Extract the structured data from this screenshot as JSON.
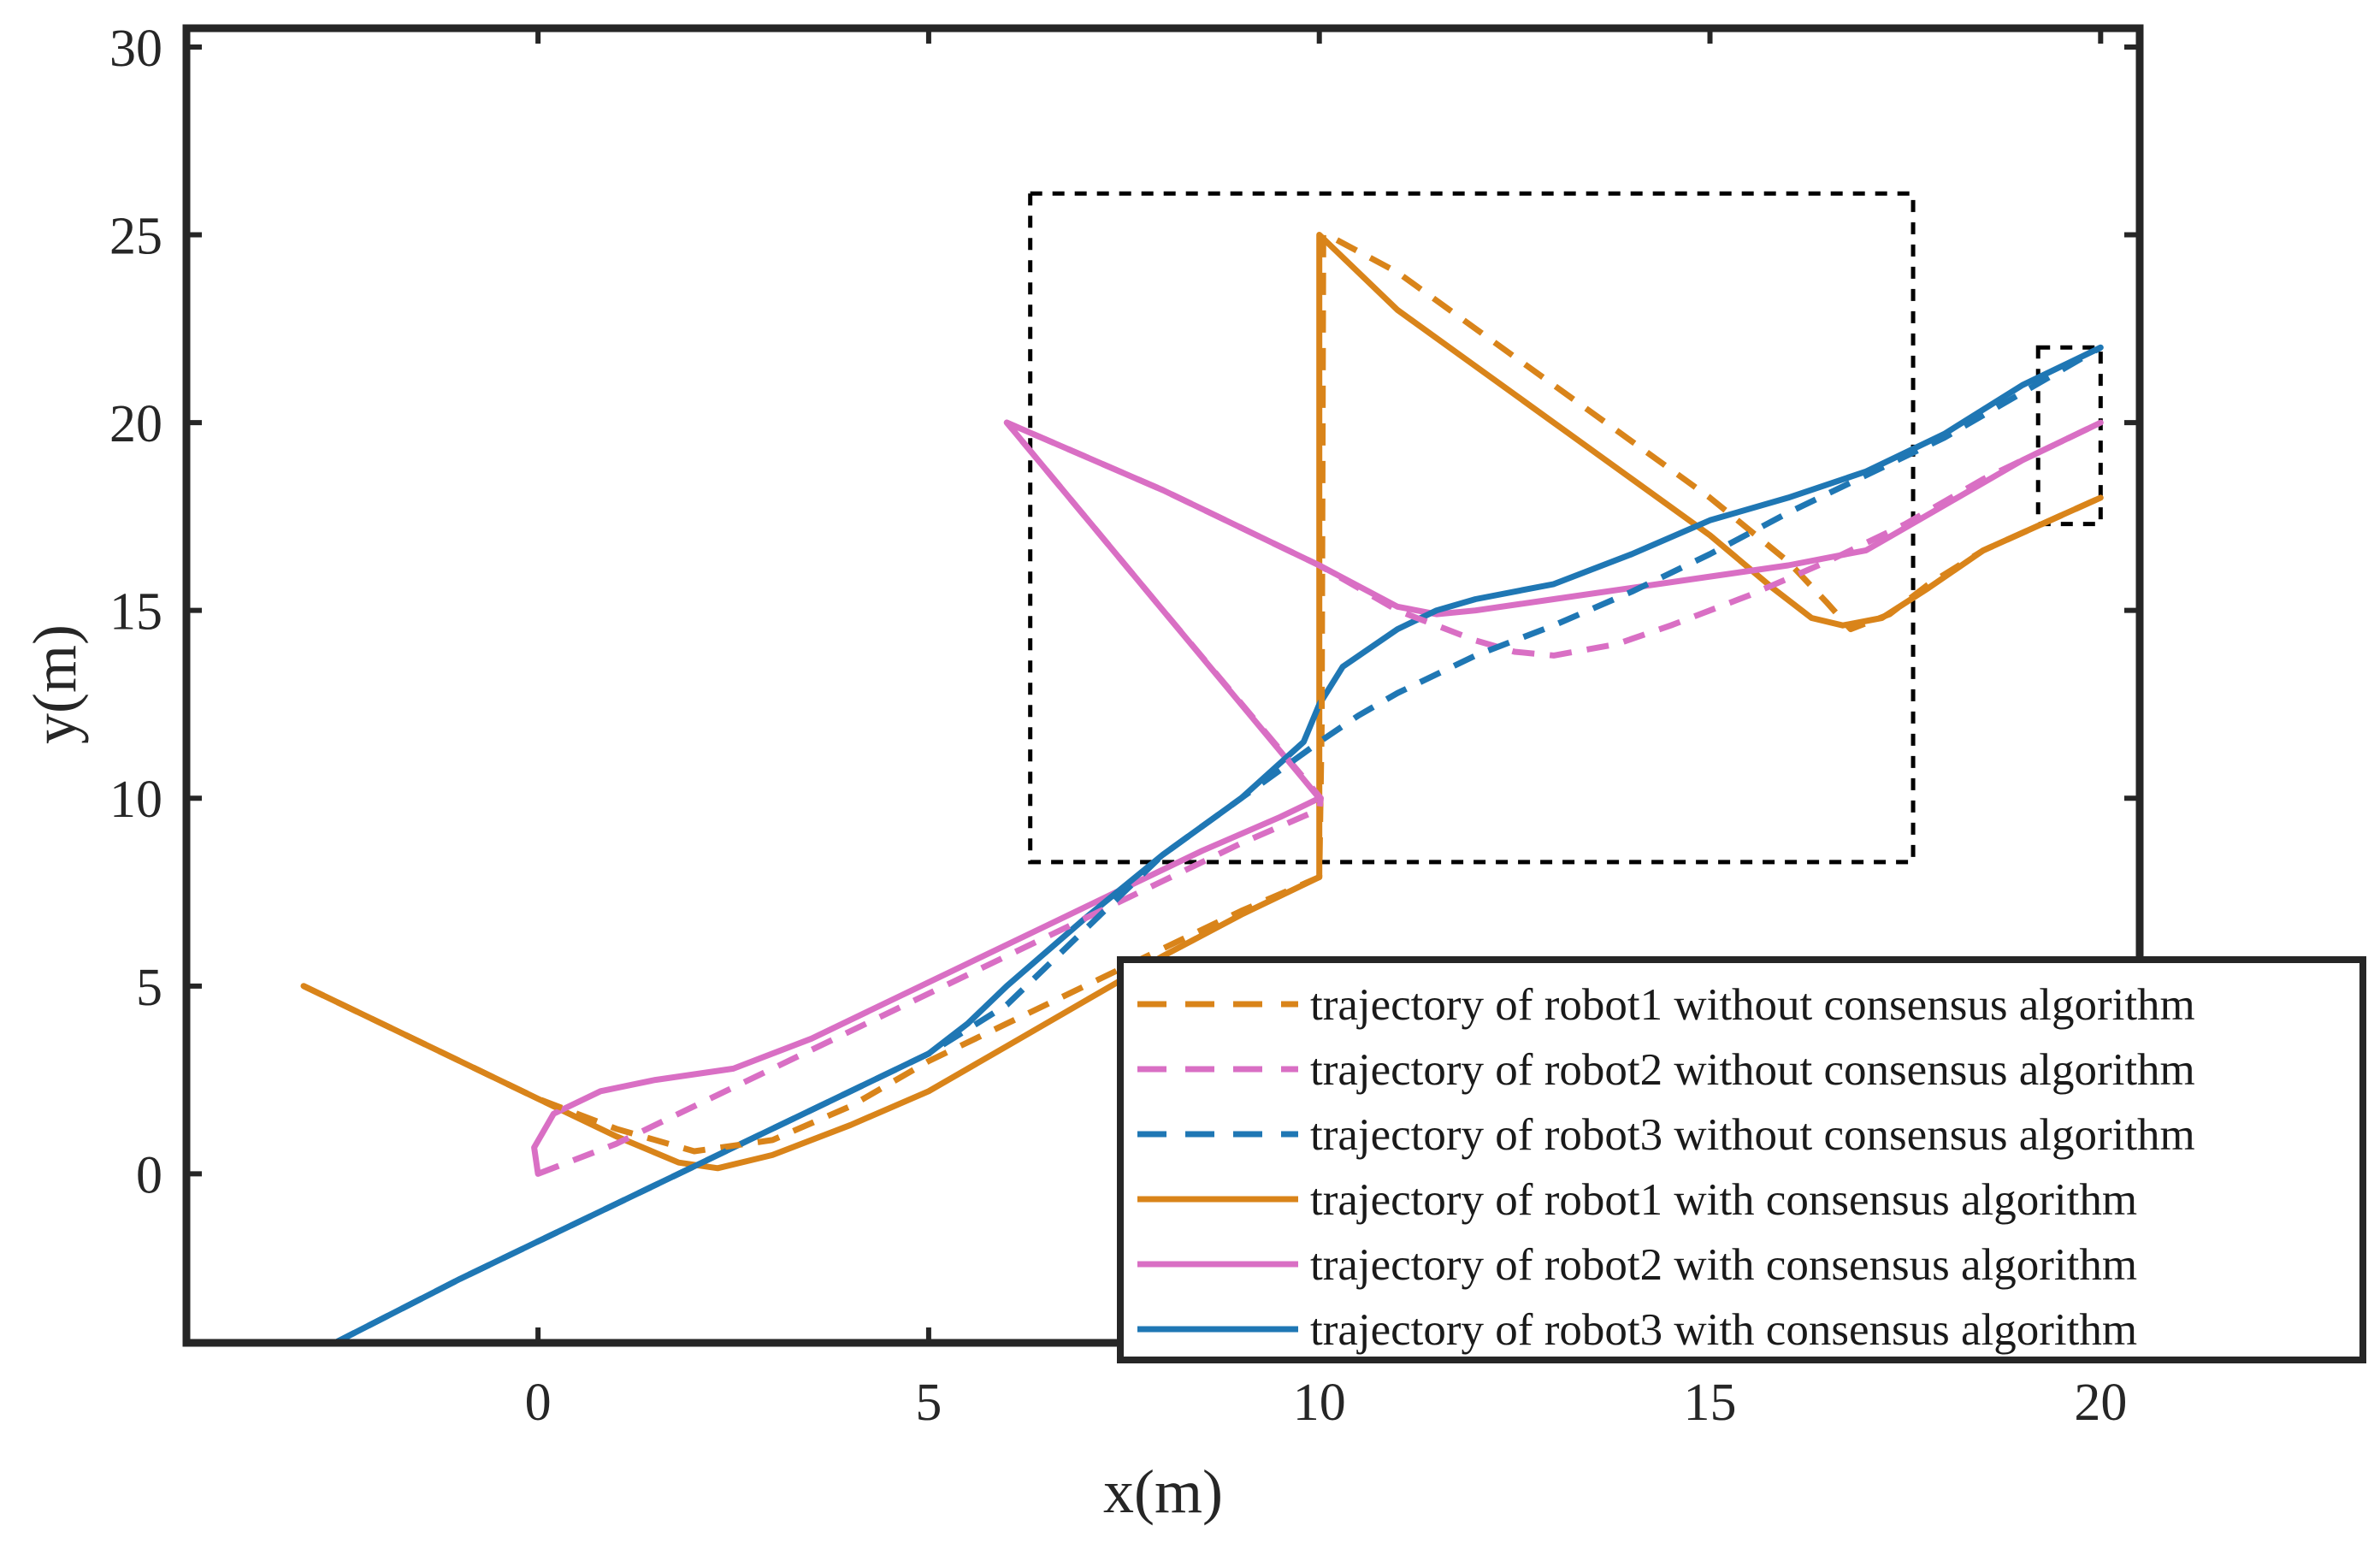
{
  "chart_data": {
    "type": "line",
    "title": "",
    "xlabel": "x(m)",
    "ylabel": "y(m)",
    "xlim": [
      -4.5,
      20.5
    ],
    "ylim": [
      -4.5,
      30.5
    ],
    "xticks": [
      0,
      5,
      10,
      15,
      20
    ],
    "yticks": [
      0,
      5,
      10,
      15,
      20,
      25,
      30
    ],
    "xtick_labels": [
      "0",
      "5",
      "10",
      "15",
      "20"
    ],
    "ytick_labels": [
      "0",
      "5",
      "10",
      "15",
      "20",
      "25",
      "30"
    ],
    "grid": false,
    "legend_position": "bottom-right",
    "series": [
      {
        "name": "trajectory of robot1 without consensus algorithm",
        "color": "#D9841A",
        "style": "dashed",
        "x": [
          -3,
          -1,
          0,
          1,
          2,
          3,
          4,
          5,
          6,
          7,
          8,
          9,
          10,
          10.03,
          10.05,
          10.1,
          11,
          12,
          13,
          14,
          15,
          16,
          16.5,
          16.8,
          17.3,
          17.8,
          18.5,
          20
        ],
        "y": [
          5,
          3,
          2,
          1.2,
          0.6,
          0.9,
          1.8,
          3,
          4,
          5,
          6,
          7,
          7.9,
          12,
          25,
          25,
          24,
          22.5,
          21,
          19.5,
          18,
          16.3,
          15.2,
          14.5,
          14.9,
          15.7,
          16.6,
          18
        ]
      },
      {
        "name": "trajectory of robot2 without consensus algorithm",
        "color": "#D96FC4",
        "style": "dashed",
        "x": [
          0,
          1,
          2,
          3,
          4,
          5,
          6,
          7,
          8,
          9,
          10,
          10.02,
          10.02,
          8,
          6,
          8,
          10,
          11,
          12,
          12.5,
          13,
          13.8,
          14.5,
          15.5,
          16.5,
          17.5,
          18.5,
          20
        ],
        "y": [
          0,
          0.8,
          1.8,
          2.8,
          3.8,
          4.8,
          5.8,
          6.8,
          7.8,
          8.8,
          9.7,
          10,
          10,
          15,
          20,
          18.2,
          16.2,
          15,
          14.2,
          13.9,
          13.8,
          14.1,
          14.6,
          15.4,
          16.3,
          17.3,
          18.5,
          20
        ]
      },
      {
        "name": "trajectory of robot3 without consensus algorithm",
        "color": "#1F77B4",
        "style": "dashed",
        "x": [
          -2.6,
          -1,
          0,
          1,
          2,
          3,
          4,
          5,
          6,
          7,
          8,
          9,
          10,
          10.5,
          11,
          12,
          13,
          14,
          15,
          16,
          17,
          18,
          19,
          20
        ],
        "y": [
          -4.5,
          -2.8,
          -1.8,
          -0.8,
          0.2,
          1.2,
          2.2,
          3.2,
          4.5,
          6.5,
          8.5,
          10,
          11.5,
          12.2,
          12.8,
          13.8,
          14.6,
          15.5,
          16.5,
          17.6,
          18.6,
          19.6,
          20.8,
          22
        ]
      },
      {
        "name": "trajectory of robot1 with consensus algorithm",
        "color": "#D9841A",
        "style": "solid",
        "x": [
          -3,
          -1,
          0,
          1,
          1.8,
          2.3,
          3,
          4,
          5,
          6,
          7,
          8,
          9,
          10,
          10,
          10,
          11,
          12,
          13,
          14,
          15,
          15.8,
          16.3,
          16.7,
          17.2,
          17.8,
          18.5,
          20
        ],
        "y": [
          5,
          3,
          2,
          1,
          0.3,
          0.15,
          0.5,
          1.3,
          2.2,
          3.4,
          4.6,
          5.8,
          6.9,
          7.9,
          15,
          25,
          23,
          21.5,
          20,
          18.5,
          17,
          15.6,
          14.8,
          14.6,
          14.8,
          15.6,
          16.6,
          18
        ]
      },
      {
        "name": "trajectory of robot2 with consensus algorithm",
        "color": "#D96FC4",
        "style": "solid",
        "x": [
          0,
          -0.05,
          0.2,
          0.8,
          1.5,
          2.5,
          3.5,
          4.5,
          5.5,
          6.5,
          7.5,
          8.5,
          9.5,
          10,
          10,
          8,
          6,
          8,
          10,
          11,
          11.5,
          12,
          13,
          14,
          15,
          16,
          17,
          18,
          19,
          20
        ],
        "y": [
          0,
          0.7,
          1.6,
          2.2,
          2.5,
          2.8,
          3.6,
          4.6,
          5.6,
          6.6,
          7.6,
          8.6,
          9.5,
          10,
          10,
          15,
          20,
          18.2,
          16.2,
          15.1,
          14.9,
          15,
          15.3,
          15.6,
          15.9,
          16.2,
          16.6,
          17.8,
          19,
          20
        ]
      },
      {
        "name": "trajectory of robot3 with consensus algorithm",
        "color": "#1F77B4",
        "style": "solid",
        "x": [
          -2.6,
          -1,
          0,
          1,
          2,
          3,
          4,
          5,
          5.5,
          6,
          7,
          8,
          9,
          9.8,
          10,
          10.3,
          11,
          11.5,
          12,
          13,
          14,
          15,
          16,
          17,
          18,
          19,
          20
        ],
        "y": [
          -4.5,
          -2.8,
          -1.8,
          -0.8,
          0.2,
          1.2,
          2.2,
          3.2,
          4,
          5,
          6.8,
          8.5,
          10,
          11.5,
          12.5,
          13.5,
          14.5,
          15,
          15.3,
          15.7,
          16.5,
          17.4,
          18,
          18.7,
          19.7,
          21,
          22
        ]
      }
    ],
    "annotations": [
      {
        "type": "dashed-box",
        "x": [
          6.3,
          17.6
        ],
        "y": [
          8.3,
          26.1
        ],
        "color": "#000000"
      },
      {
        "type": "dashed-box",
        "x": [
          19.2,
          20
        ],
        "y": [
          17.3,
          22
        ],
        "color": "#000000"
      }
    ]
  }
}
